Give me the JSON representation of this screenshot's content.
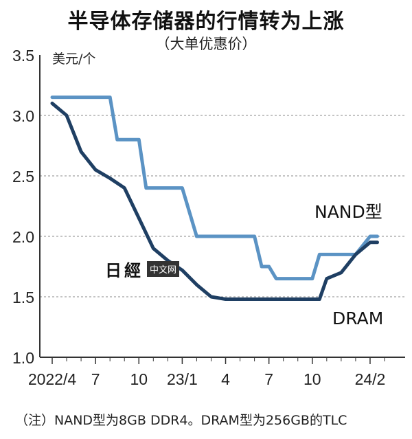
{
  "title": "半导体存储器的行情转为上涨",
  "subtitle": "（大单优惠价）",
  "note": "（注）NAND型为8GB DDR4。DRAM型为256GB的TLC",
  "watermark": {
    "logo": "日經",
    "tag": "中文网"
  },
  "chart_data": {
    "type": "line",
    "ylabel": "美元/个",
    "ylim": [
      1.0,
      3.5
    ],
    "yticks": [
      "1.0",
      "1.5",
      "2.0",
      "2.5",
      "3.0",
      "3.5"
    ],
    "y_tick_values": [
      1.0,
      1.5,
      2.0,
      2.5,
      3.0,
      3.5
    ],
    "xlim": [
      0,
      23
    ],
    "xticks": [
      {
        "label": "2022/4",
        "x": 0
      },
      {
        "label": "7",
        "x": 3
      },
      {
        "label": "10",
        "x": 6
      },
      {
        "label": "23/1",
        "x": 9
      },
      {
        "label": "4",
        "x": 12
      },
      {
        "label": "7",
        "x": 15
      },
      {
        "label": "10",
        "x": 18
      },
      {
        "label": "24/2",
        "x": 22
      }
    ],
    "grid": true,
    "series": [
      {
        "name": "NAND型",
        "color": "#5b93c4",
        "x": [
          0,
          0.5,
          1,
          2,
          3,
          4,
          4.5,
          5,
          5.5,
          6,
          6.5,
          7,
          7.5,
          8,
          9,
          10,
          10.5,
          11,
          12,
          13,
          14,
          14.5,
          15,
          15.5,
          16,
          17,
          18,
          18.5,
          19,
          20,
          21,
          22,
          22.5
        ],
        "y": [
          3.15,
          3.15,
          3.15,
          3.15,
          3.15,
          3.15,
          2.8,
          2.8,
          2.8,
          2.8,
          2.4,
          2.4,
          2.4,
          2.4,
          2.4,
          2.0,
          2.0,
          2.0,
          2.0,
          2.0,
          2.0,
          1.75,
          1.75,
          1.65,
          1.65,
          1.65,
          1.65,
          1.85,
          1.85,
          1.85,
          1.85,
          2.0,
          2.0
        ]
      },
      {
        "name": "DRAM",
        "color": "#1f3f63",
        "x": [
          0,
          1,
          2,
          3,
          4,
          5,
          6,
          7,
          8,
          9,
          10,
          11,
          12,
          13,
          14,
          15,
          16,
          17,
          18,
          18.5,
          19,
          20,
          21,
          22,
          22.5
        ],
        "y": [
          3.1,
          3.0,
          2.7,
          2.55,
          2.48,
          2.4,
          2.15,
          1.9,
          1.8,
          1.72,
          1.6,
          1.5,
          1.48,
          1.48,
          1.48,
          1.48,
          1.48,
          1.48,
          1.48,
          1.48,
          1.65,
          1.7,
          1.85,
          1.95,
          1.95
        ]
      }
    ]
  }
}
